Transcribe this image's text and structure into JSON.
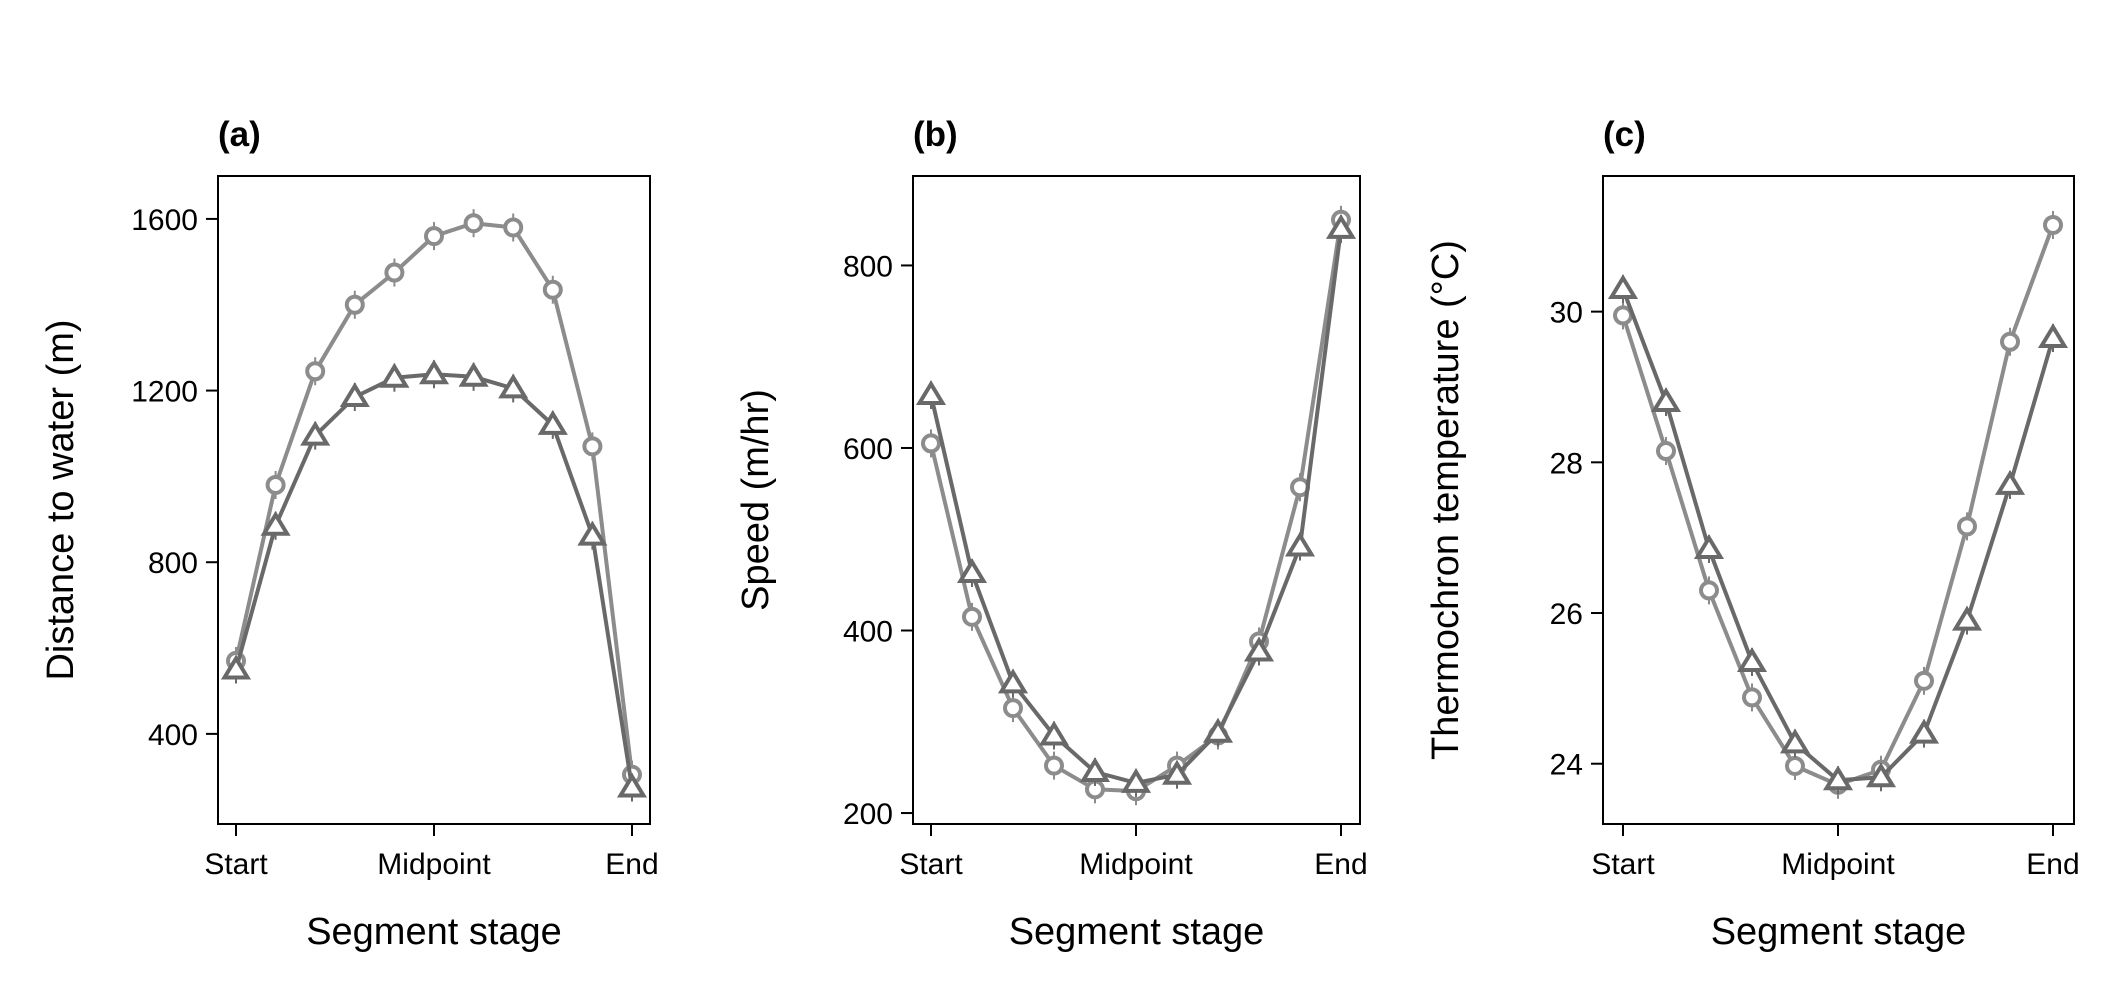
{
  "chart_data": [
    {
      "type": "line",
      "panel_label": "(a)",
      "xlabel": "Segment stage",
      "ylabel": "Distance to water (m)",
      "x_ticks": [
        "Start",
        "Midpoint",
        "End"
      ],
      "x": [
        0,
        1,
        2,
        3,
        4,
        5,
        6,
        7,
        8,
        9,
        10
      ],
      "ylim": [
        190,
        1700
      ],
      "yticks": [
        400,
        800,
        1200,
        1600
      ],
      "grid": false,
      "legend": "none",
      "series": [
        {
          "marker": "circle",
          "color": "#8c8c8c",
          "values": [
            570,
            980,
            1245,
            1400,
            1475,
            1560,
            1590,
            1580,
            1435,
            1070,
            305
          ]
        },
        {
          "marker": "triangle",
          "color": "#696969",
          "values": [
            550,
            885,
            1095,
            1185,
            1230,
            1238,
            1232,
            1205,
            1120,
            862,
            275
          ]
        }
      ]
    },
    {
      "type": "line",
      "panel_label": "(b)",
      "xlabel": "Segment stage",
      "ylabel": "Speed (m/hr)",
      "x_ticks": [
        "Start",
        "Midpoint",
        "End"
      ],
      "x": [
        0,
        1,
        2,
        3,
        4,
        5,
        6,
        7,
        8,
        9,
        10
      ],
      "ylim": [
        188,
        898
      ],
      "yticks": [
        200,
        400,
        600,
        800
      ],
      "grid": false,
      "legend": "none",
      "series": [
        {
          "marker": "circle",
          "color": "#8c8c8c",
          "values": [
            605,
            415,
            315,
            252,
            226,
            224,
            252,
            285,
            388,
            557,
            850
          ]
        },
        {
          "marker": "triangle",
          "color": "#696969",
          "values": [
            658,
            463,
            342,
            285,
            245,
            233,
            242,
            288,
            377,
            492,
            840
          ]
        }
      ]
    },
    {
      "type": "line",
      "panel_label": "(c)",
      "xlabel": "Segment stage",
      "ylabel": "Thermochron temperature (°C)",
      "x_ticks": [
        "Start",
        "Midpoint",
        "End"
      ],
      "x": [
        0,
        1,
        2,
        3,
        4,
        5,
        6,
        7,
        8,
        9,
        10
      ],
      "ylim": [
        23.2,
        31.8
      ],
      "yticks": [
        24,
        26,
        28,
        30
      ],
      "grid": false,
      "legend": "none",
      "series": [
        {
          "marker": "circle",
          "color": "#8c8c8c",
          "values": [
            29.95,
            28.15,
            26.3,
            24.88,
            23.97,
            23.72,
            23.92,
            25.1,
            27.15,
            29.6,
            31.15
          ]
        },
        {
          "marker": "triangle",
          "color": "#696969",
          "values": [
            30.3,
            28.8,
            26.85,
            25.35,
            24.27,
            23.78,
            23.82,
            24.4,
            25.9,
            27.7,
            29.65
          ]
        }
      ]
    }
  ]
}
